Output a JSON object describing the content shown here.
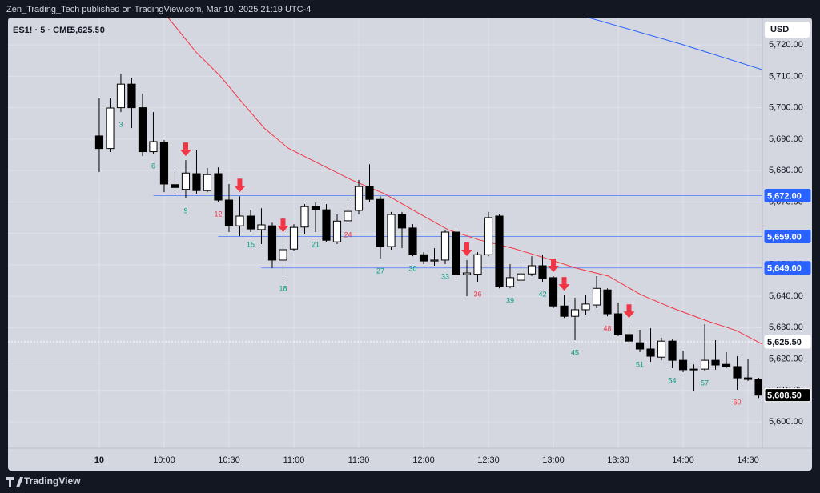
{
  "chart_data": {
    "type": "candlestick",
    "publisher": "Zen_Trading_Tech published on TradingView.com, Mar 10, 2025 21:19 UTC-4",
    "symbol": "ES1! · 5 · CME",
    "currency": "USD",
    "brand": "TradingView",
    "x": [
      1,
      2,
      3,
      4,
      5,
      6,
      7,
      8,
      9,
      10,
      11,
      12,
      13,
      14,
      15,
      16,
      17,
      18,
      19,
      20,
      21,
      22,
      23,
      24,
      25,
      26,
      27,
      28,
      29,
      30,
      31,
      32,
      33,
      34,
      35,
      36,
      37,
      38,
      39,
      40,
      41,
      42,
      43,
      44,
      45,
      46,
      47,
      48,
      49,
      50,
      51,
      52,
      53,
      54,
      55,
      56,
      57,
      58,
      59,
      60,
      61,
      62
    ],
    "open": [
      5691,
      5687,
      5700,
      5707.5,
      5700,
      5686,
      5689,
      5675.5,
      5674,
      5679,
      5673.6,
      5679,
      5670.6,
      5662.4,
      5665.5,
      5661.2,
      5662.4,
      5651.5,
      5655,
      5662,
      5668.5,
      5667.5,
      5657.3,
      5664,
      5667.3,
      5675,
      5670.8,
      5655.8,
      5666,
      5661.7,
      5653.2,
      5651.2,
      5651.5,
      5660.4,
      5646.9,
      5647,
      5653.2,
      5665.5,
      5643.1,
      5645.1,
      5647.1,
      5649.7,
      5645.9,
      5636.9,
      5633.6,
      5635.7,
      5637.2,
      5642,
      5634.4,
      5627.8,
      5625.2,
      5623.2,
      5620.6,
      5625.7,
      5619.6,
      5616.8,
      5616.8,
      5619.6,
      5618.3,
      5617.6,
      5614,
      5613.5
    ],
    "high": [
      5703,
      5703,
      5710.8,
      5709.6,
      5704.5,
      5698.6,
      5689.7,
      5679.5,
      5683.3,
      5686.4,
      5680.8,
      5681,
      5675.7,
      5671.8,
      5667.5,
      5668,
      5663.4,
      5659.1,
      5662.9,
      5669.3,
      5669.8,
      5669.3,
      5666,
      5669.3,
      5677,
      5682,
      5671.8,
      5666.8,
      5666.8,
      5662.9,
      5654,
      5655.3,
      5661.1,
      5661,
      5651.5,
      5654,
      5666.8,
      5666,
      5650.2,
      5651.5,
      5652.7,
      5653.2,
      5646.4,
      5640.5,
      5639.5,
      5640.5,
      5646.4,
      5642.5,
      5638,
      5631.8,
      5629.3,
      5629.8,
      5626.8,
      5626.2,
      5622.7,
      5618.3,
      5631.1,
      5626,
      5622.2,
      5620.9,
      5620.1,
      5614
    ],
    "low": [
      5679.5,
      5685.9,
      5698.6,
      5693.5,
      5684.6,
      5685.4,
      5673.1,
      5672.6,
      5671.1,
      5672.6,
      5673.1,
      5670,
      5660.4,
      5659.1,
      5660.4,
      5656.6,
      5648.9,
      5646.4,
      5654.5,
      5659.9,
      5660.4,
      5657.3,
      5656.6,
      5663.4,
      5666,
      5670,
      5652,
      5654.8,
      5655.3,
      5652.7,
      5650.2,
      5649.7,
      5650.2,
      5645.1,
      5640,
      5644.6,
      5652.7,
      5642.5,
      5642.5,
      5644.6,
      5646.4,
      5644.6,
      5636.2,
      5633.1,
      5626,
      5634.1,
      5636.2,
      5633.6,
      5627.3,
      5622.2,
      5622.2,
      5619.1,
      5619.6,
      5617.1,
      5615.8,
      5609.9,
      5616.3,
      5616.6,
      5617.1,
      5610.2,
      5613,
      5607.6
    ],
    "close": [
      5687,
      5699.9,
      5707.5,
      5700,
      5686,
      5689.2,
      5675.7,
      5674.6,
      5679.2,
      5673.6,
      5678.7,
      5670.6,
      5662.4,
      5665.5,
      5661.4,
      5662.7,
      5651.5,
      5654.8,
      5661.9,
      5668.5,
      5667.5,
      5657.8,
      5663.9,
      5667,
      5674.9,
      5670.8,
      5655.8,
      5666,
      5661.7,
      5653.2,
      5651.2,
      5651.5,
      5660.4,
      5646.9,
      5647.4,
      5653.2,
      5665,
      5643.1,
      5645.9,
      5647.1,
      5649.7,
      5645.6,
      5636.9,
      5633.6,
      5635.7,
      5637.5,
      5642.5,
      5634.4,
      5627.8,
      5625.7,
      5623.2,
      5620.9,
      5625.7,
      5619.6,
      5616.6,
      5616.6,
      5619.6,
      5618.1,
      5617.6,
      5614,
      5613.5,
      5608.5
    ],
    "up_color": "#ffffff",
    "down_color": "#000000",
    "xlim": [
      -7.44,
      62.33
    ],
    "xticks": [
      {
        "value": 1,
        "label": "10"
      },
      {
        "value": 7,
        "label": "10:00"
      },
      {
        "value": 13,
        "label": "10:30"
      },
      {
        "value": 19,
        "label": "11:00"
      },
      {
        "value": 25,
        "label": "11:30"
      },
      {
        "value": 31,
        "label": "12:00"
      },
      {
        "value": 37,
        "label": "12:30"
      },
      {
        "value": 43,
        "label": "13:00"
      },
      {
        "value": 49,
        "label": "13:30"
      },
      {
        "value": 55,
        "label": "14:00"
      },
      {
        "value": 61,
        "label": "14:30"
      }
    ],
    "ylim": [
      5591.6,
      5728.7
    ],
    "yticks": [
      {
        "value": 5600,
        "label": "5,600.00"
      },
      {
        "value": 5610,
        "label": "5,610.00"
      },
      {
        "value": 5620,
        "label": "5,620.00"
      },
      {
        "value": 5630,
        "label": "5,630.00"
      },
      {
        "value": 5640,
        "label": "5,640.00"
      },
      {
        "value": 5650,
        "label": "5,650.00"
      },
      {
        "value": 5660,
        "label": "5,660.00"
      },
      {
        "value": 5670,
        "label": "5,670.00"
      },
      {
        "value": 5680,
        "label": "5,680.00"
      },
      {
        "value": 5690,
        "label": "5,690.00"
      },
      {
        "value": 5700,
        "label": "5,700.00"
      },
      {
        "value": 5710,
        "label": "5,710.00"
      },
      {
        "value": 5720,
        "label": "5,720.00"
      }
    ],
    "grid": true,
    "lines": [
      {
        "color": "#f23645",
        "x": [
          7.37,
          9.96,
          12.19,
          14.04,
          16.26,
          18.48,
          21.44,
          24.41,
          27.37,
          30.33,
          33.3,
          36.26,
          39.22,
          42.19,
          45.15,
          48.11,
          51.07,
          54.04,
          57,
          59.96,
          62.33
        ],
        "values": [
          5728.7,
          5717.7,
          5710.1,
          5702.4,
          5693.5,
          5687.1,
          5682,
          5676.9,
          5672.6,
          5666.8,
          5661.1,
          5657.8,
          5655.3,
          5652.2,
          5648.9,
          5646.4,
          5640.5,
          5636.2,
          5632.4,
          5629,
          5624.7
        ]
      },
      {
        "color": "#2962ff",
        "x": [
          46.26,
          54.78,
          62.33
        ],
        "values": [
          5728.7,
          5720.3,
          5712.1
        ]
      }
    ],
    "levels": [
      {
        "value": 5672,
        "label": "5,672.00",
        "start": 6
      },
      {
        "value": 5659,
        "label": "5,659.00",
        "start": 12
      },
      {
        "value": 5649,
        "label": "5,649.00",
        "start": 16
      }
    ],
    "level_color": "#2962ff",
    "current": {
      "value": 5625.5,
      "label": "5,625.50"
    },
    "last": {
      "value": 5608.5,
      "label": "5,608.50"
    },
    "bar_labels": [
      {
        "bar": 3,
        "color": "#089981"
      },
      {
        "bar": 6,
        "color": "#089981"
      },
      {
        "bar": 9,
        "color": "#089981"
      },
      {
        "bar": 12,
        "color": "#f23645"
      },
      {
        "bar": 15,
        "color": "#089981"
      },
      {
        "bar": 18,
        "color": "#089981"
      },
      {
        "bar": 21,
        "color": "#089981"
      },
      {
        "bar": 24,
        "color": "#f23645"
      },
      {
        "bar": 27,
        "color": "#089981"
      },
      {
        "bar": 30,
        "color": "#089981"
      },
      {
        "bar": 33,
        "color": "#089981"
      },
      {
        "bar": 36,
        "color": "#f23645"
      },
      {
        "bar": 39,
        "color": "#089981"
      },
      {
        "bar": 42,
        "color": "#089981"
      },
      {
        "bar": 45,
        "color": "#089981"
      },
      {
        "bar": 48,
        "color": "#f23645"
      },
      {
        "bar": 51,
        "color": "#089981"
      },
      {
        "bar": 54,
        "color": "#089981"
      },
      {
        "bar": 57,
        "color": "#089981"
      },
      {
        "bar": 60,
        "color": "#f23645"
      }
    ],
    "signals": [
      9,
      14,
      18,
      35,
      43,
      44,
      50
    ],
    "signal_color": "#f23645"
  }
}
